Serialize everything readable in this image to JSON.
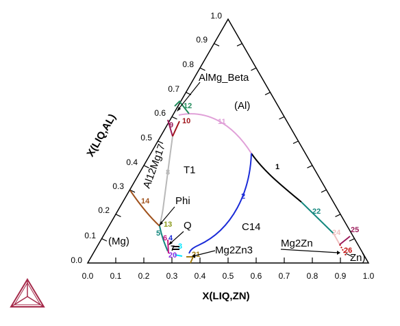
{
  "diagram": {
    "axes": {
      "bottom_title": "X(LIQ,ZN)",
      "left_title": "X(LIQ,AL)",
      "bottom_ticks": [
        "0.0",
        "0.1",
        "0.2",
        "0.3",
        "0.4",
        "0.5",
        "0.6",
        "0.7",
        "0.8",
        "0.9",
        "1.0"
      ],
      "left_ticks": [
        "0.0",
        "0.1",
        "0.2",
        "0.3",
        "0.4",
        "0.5",
        "0.6",
        "0.7",
        "0.8",
        "0.9",
        "1.0"
      ]
    },
    "regions": {
      "mg": "(Mg)",
      "al": "(Al)",
      "zn": "Zn)",
      "t1": "T1",
      "c14": "C14",
      "phi": "Phi",
      "q": "Q",
      "almg_beta": "AlMg_Beta",
      "al12mg17": "Al12Mg17",
      "mg2zn3": "Mg2Zn3",
      "mg2zn": "Mg2Zn"
    },
    "curve_labels": {
      "c1": "1",
      "c2": "2",
      "c3": "3",
      "c4": "4",
      "c5": "5",
      "c6": "6",
      "c7": "7",
      "c8": "8",
      "c9": "9",
      "c10": "10",
      "c11": "11",
      "c12": "12",
      "c13": "13",
      "c14": "14",
      "c20": "20",
      "c21": "21",
      "c22": "22",
      "c24": "24",
      "c25": "25",
      "c26": "26"
    },
    "colors": {
      "c1": "#000000",
      "c2": "#1a2bd8",
      "c5": "#13877e",
      "c6": "#c71585",
      "c8": "#b8b8b8",
      "c9": "#9b1b5a",
      "c10": "#a0141b",
      "c11": "#e0a0d8",
      "c12": "#1f8a5a",
      "c13": "#8a9a1a",
      "c14": "#a0521d",
      "c21": "#a07a10",
      "c22": "#13877e",
      "c24": "#f0c0c0",
      "c25": "#9b1b5a",
      "c26": "#c01010",
      "cyan": "#00e5ff",
      "logo": "#a52a4a"
    }
  }
}
